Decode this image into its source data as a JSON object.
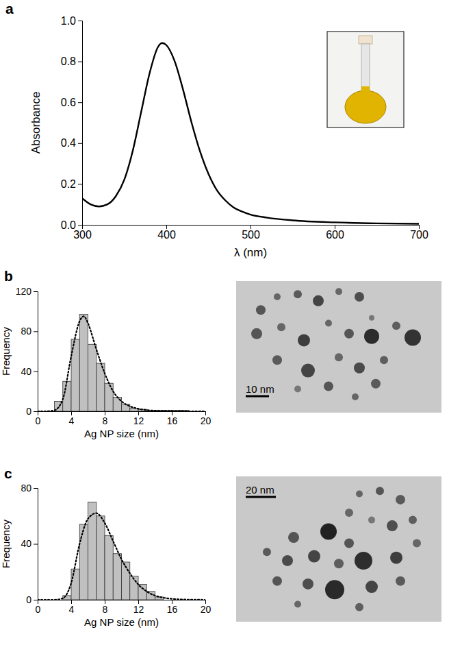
{
  "chart_data": [
    {
      "type": "line",
      "title": "a",
      "x": [
        300,
        310,
        320,
        330,
        340,
        350,
        360,
        370,
        380,
        390,
        395,
        400,
        410,
        420,
        430,
        440,
        450,
        460,
        470,
        480,
        490,
        500,
        520,
        550,
        600,
        650,
        700
      ],
      "values": [
        0.13,
        0.1,
        0.09,
        0.1,
        0.14,
        0.22,
        0.36,
        0.55,
        0.74,
        0.87,
        0.89,
        0.88,
        0.8,
        0.66,
        0.5,
        0.36,
        0.25,
        0.17,
        0.12,
        0.085,
        0.065,
        0.05,
        0.035,
        0.022,
        0.012,
        0.007,
        0.005
      ],
      "x_label": "λ (nm)",
      "y_label": "Absorbance",
      "xlim": [
        300,
        700
      ],
      "xticks": [
        300,
        400,
        500,
        600,
        700
      ],
      "ylim": [
        0,
        1
      ],
      "yticks": [
        {
          "value": 0,
          "label": "0.0"
        },
        {
          "value": 0.2,
          "label": "0.2"
        },
        {
          "value": 0.4,
          "label": "0.4"
        },
        {
          "value": 0.6,
          "label": "0.6"
        },
        {
          "value": 0.8,
          "label": "0.8"
        },
        {
          "value": 1,
          "label": "1.0"
        }
      ],
      "color": "#000000",
      "line_style": "solid",
      "grid": false
    },
    {
      "type": "histogram",
      "title": "b",
      "bins": [
        2,
        3,
        4,
        5,
        6,
        7,
        8,
        9,
        10,
        11,
        12,
        13,
        14,
        15,
        16,
        17,
        18
      ],
      "counts": [
        10,
        30,
        72,
        97,
        67,
        48,
        28,
        14,
        7,
        3,
        2,
        1,
        1,
        1,
        1,
        1
      ],
      "color": "#c0c0c0",
      "x_label": "Ag NP size (nm)",
      "y_label": "Frequency",
      "xlim": [
        0,
        20
      ],
      "xticks": [
        0,
        4,
        8,
        12,
        16,
        20
      ],
      "ylim": [
        0,
        120
      ],
      "yticks": [
        0,
        40,
        80,
        120
      ],
      "grid": false,
      "series": [
        {
          "type": "line",
          "line_style": "dotted",
          "color": "#000000",
          "x": [
            0,
            1,
            2,
            3,
            4,
            5,
            5.5,
            6,
            7,
            8,
            9,
            10,
            11,
            12,
            13,
            14,
            16,
            18,
            20
          ],
          "values": [
            0,
            0,
            1,
            12,
            55,
            90,
            95,
            88,
            62,
            38,
            20,
            10,
            5,
            2.5,
            1.2,
            0.6,
            0.2,
            0,
            0
          ]
        }
      ],
      "annotations": [
        "10 nm"
      ]
    },
    {
      "type": "histogram",
      "title": "c",
      "bins": [
        3,
        4,
        5,
        6,
        7,
        8,
        9,
        10,
        11,
        12,
        13,
        14,
        15
      ],
      "counts": [
        3,
        22,
        54,
        70,
        60,
        46,
        33,
        27,
        17,
        11,
        6,
        2
      ],
      "color": "#c0c0c0",
      "x_label": "Ag NP size (nm)",
      "y_label": "Frequency",
      "xlim": [
        0,
        20
      ],
      "xticks": [
        0,
        4,
        8,
        12,
        16,
        20
      ],
      "ylim": [
        0,
        80
      ],
      "yticks": [
        0,
        40,
        80
      ],
      "grid": false,
      "series": [
        {
          "type": "line",
          "line_style": "dotted",
          "color": "#000000",
          "x": [
            0,
            2,
            3,
            4,
            5,
            6,
            7,
            8,
            9,
            10,
            11,
            12,
            13,
            14,
            15,
            16,
            18,
            20
          ],
          "values": [
            0,
            0,
            1,
            12,
            40,
            58,
            62,
            55,
            42,
            29,
            19,
            11,
            6,
            3,
            1.5,
            0.7,
            0.1,
            0
          ]
        }
      ],
      "annotations": [
        "20 nm"
      ]
    }
  ]
}
